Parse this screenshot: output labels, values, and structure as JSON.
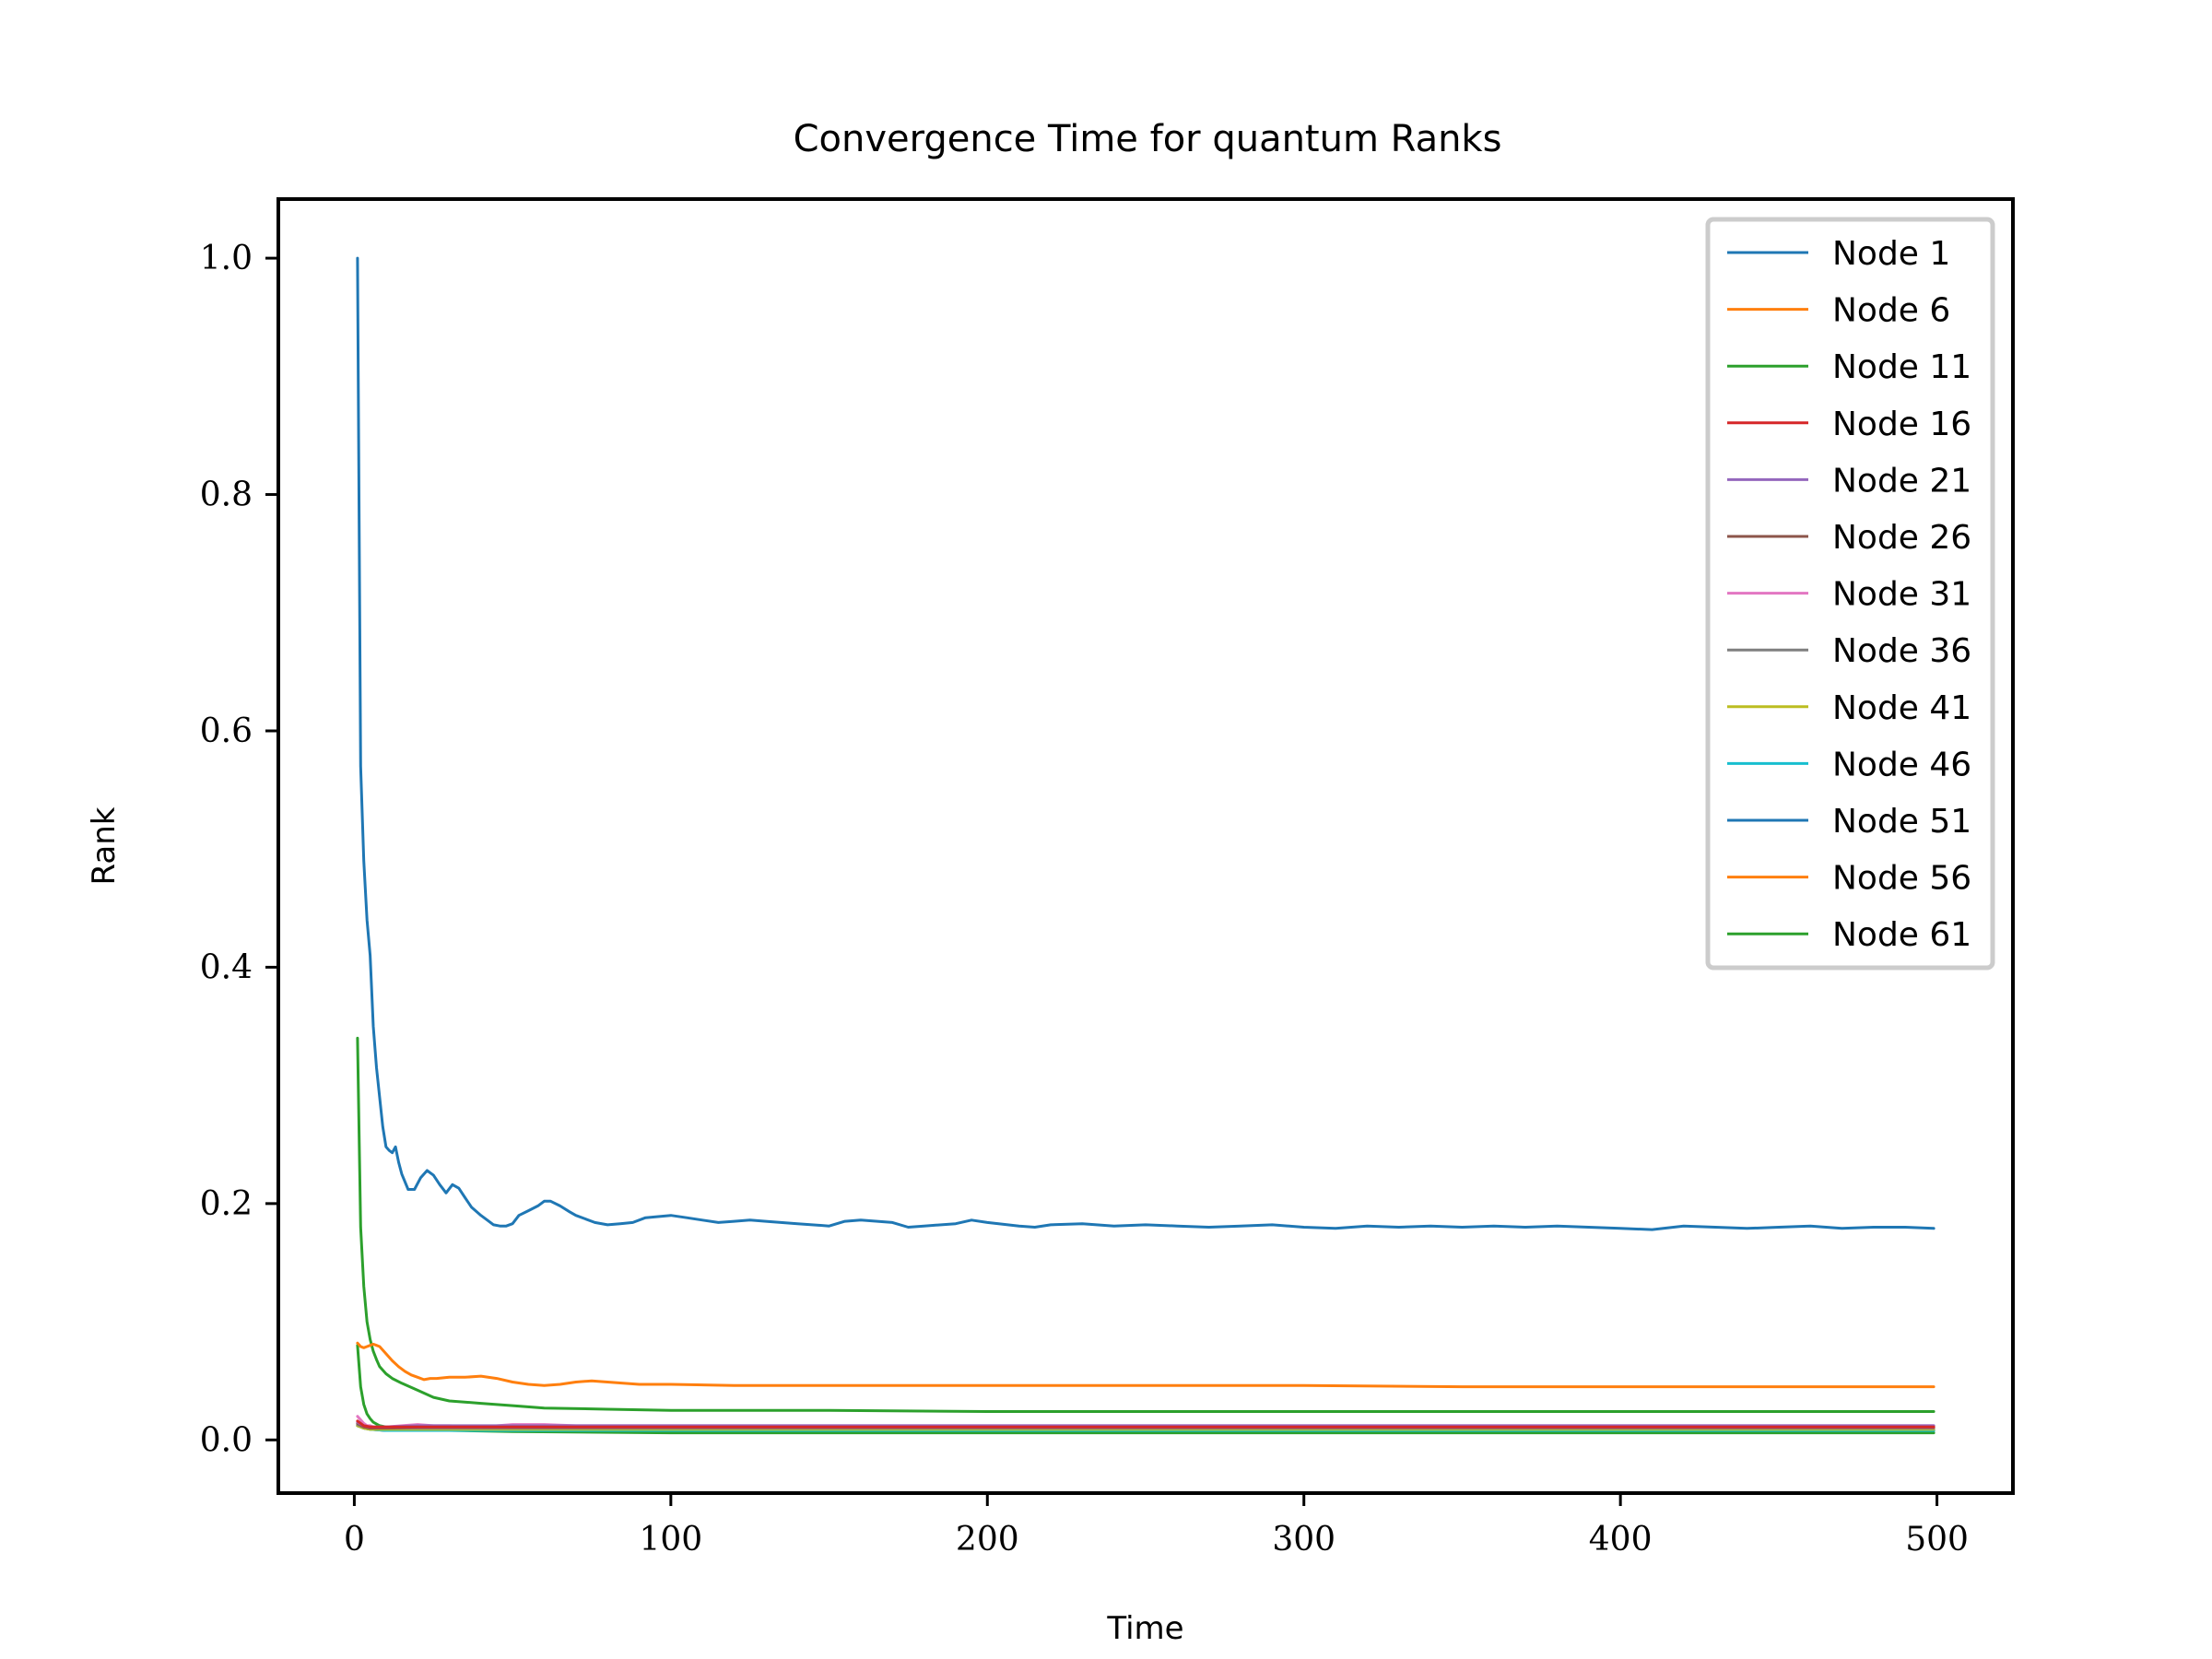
{
  "chart_data": {
    "type": "line",
    "title": "Convergence Time for quantum Ranks",
    "xlabel": "Time",
    "ylabel": "Rank",
    "xlim": [
      -24,
      524
    ],
    "ylim": [
      -0.045,
      1.05
    ],
    "xticks": [
      0,
      100,
      200,
      300,
      400,
      500
    ],
    "xtick_labels": [
      "0",
      "100",
      "200",
      "300",
      "400",
      "500"
    ],
    "yticks": [
      0.0,
      0.2,
      0.4,
      0.6,
      0.8,
      1.0
    ],
    "ytick_labels": [
      "0.0",
      "0.2",
      "0.4",
      "0.6",
      "0.8",
      "1.0"
    ],
    "grid": false,
    "legend_position": "top-right",
    "series": [
      {
        "name": "Node 1",
        "color": "#1f77b4",
        "x": [
          1,
          2,
          3,
          4,
          5,
          6,
          7,
          8,
          9,
          10,
          11,
          12,
          13,
          14,
          15,
          17,
          19,
          21,
          23,
          25,
          27,
          29,
          31,
          33,
          35,
          37,
          40,
          42,
          44,
          46,
          48,
          50,
          52,
          55,
          58,
          60,
          62,
          65,
          68,
          70,
          73,
          76,
          80,
          84,
          88,
          92,
          96,
          100,
          105,
          110,
          115,
          120,
          125,
          130,
          140,
          150,
          155,
          160,
          170,
          175,
          180,
          190,
          195,
          200,
          210,
          215,
          220,
          230,
          240,
          250,
          260,
          270,
          280,
          290,
          300,
          310,
          320,
          330,
          340,
          350,
          360,
          370,
          380,
          390,
          400,
          410,
          420,
          430,
          440,
          450,
          460,
          470,
          480,
          490,
          499
        ],
        "y": [
          1.0,
          0.57,
          0.49,
          0.44,
          0.41,
          0.35,
          0.315,
          0.29,
          0.265,
          0.248,
          0.245,
          0.243,
          0.248,
          0.235,
          0.225,
          0.212,
          0.212,
          0.222,
          0.228,
          0.224,
          0.216,
          0.209,
          0.216,
          0.213,
          0.205,
          0.197,
          0.19,
          0.186,
          0.182,
          0.181,
          0.181,
          0.183,
          0.19,
          0.194,
          0.198,
          0.202,
          0.202,
          0.198,
          0.193,
          0.19,
          0.187,
          0.184,
          0.182,
          0.183,
          0.184,
          0.188,
          0.189,
          0.19,
          0.188,
          0.186,
          0.184,
          0.185,
          0.186,
          0.185,
          0.183,
          0.181,
          0.185,
          0.186,
          0.184,
          0.18,
          0.181,
          0.183,
          0.186,
          0.184,
          0.181,
          0.18,
          0.182,
          0.183,
          0.181,
          0.182,
          0.181,
          0.18,
          0.181,
          0.182,
          0.18,
          0.179,
          0.181,
          0.18,
          0.181,
          0.18,
          0.181,
          0.18,
          0.181,
          0.18,
          0.179,
          0.178,
          0.181,
          0.18,
          0.179,
          0.18,
          0.181,
          0.179,
          0.18,
          0.18,
          0.179
        ]
      },
      {
        "name": "Node 6",
        "color": "#ff7f0e",
        "x": [
          1,
          2,
          3,
          4,
          5,
          6,
          7,
          8,
          10,
          12,
          14,
          16,
          18,
          20,
          22,
          24,
          26,
          30,
          35,
          40,
          45,
          50,
          55,
          60,
          65,
          70,
          75,
          80,
          85,
          90,
          100,
          120,
          140,
          160,
          180,
          200,
          250,
          300,
          350,
          400,
          450,
          499
        ],
        "y": [
          0.082,
          0.079,
          0.078,
          0.079,
          0.08,
          0.081,
          0.08,
          0.079,
          0.073,
          0.067,
          0.062,
          0.058,
          0.055,
          0.053,
          0.051,
          0.052,
          0.052,
          0.053,
          0.053,
          0.054,
          0.052,
          0.049,
          0.047,
          0.046,
          0.047,
          0.049,
          0.05,
          0.049,
          0.048,
          0.047,
          0.047,
          0.046,
          0.046,
          0.046,
          0.046,
          0.046,
          0.046,
          0.046,
          0.045,
          0.045,
          0.045,
          0.045
        ]
      },
      {
        "name": "Node 11",
        "color": "#2ca02c",
        "x": [
          1,
          2,
          3,
          4,
          5,
          6,
          7,
          8,
          10,
          12,
          15,
          20,
          25,
          30,
          40,
          50,
          60,
          80,
          100,
          150,
          200,
          300,
          400,
          499
        ],
        "y": [
          0.34,
          0.18,
          0.13,
          0.1,
          0.085,
          0.075,
          0.068,
          0.062,
          0.056,
          0.052,
          0.048,
          0.042,
          0.036,
          0.033,
          0.031,
          0.029,
          0.027,
          0.026,
          0.025,
          0.025,
          0.024,
          0.024,
          0.024,
          0.024
        ]
      },
      {
        "name": "Node 16",
        "color": "#d62728",
        "x": [
          1,
          3,
          5,
          10,
          20,
          50,
          100,
          200,
          300,
          400,
          499
        ],
        "y": [
          0.016,
          0.012,
          0.011,
          0.011,
          0.011,
          0.011,
          0.011,
          0.011,
          0.011,
          0.011,
          0.011
        ]
      },
      {
        "name": "Node 21",
        "color": "#9467bd",
        "x": [
          1,
          3,
          5,
          10,
          20,
          50,
          100,
          200,
          300,
          400,
          499
        ],
        "y": [
          0.015,
          0.012,
          0.011,
          0.011,
          0.012,
          0.012,
          0.012,
          0.012,
          0.012,
          0.012,
          0.012
        ]
      },
      {
        "name": "Node 26",
        "color": "#8c564b",
        "x": [
          1,
          3,
          5,
          10,
          20,
          50,
          100,
          200,
          300,
          400,
          499
        ],
        "y": [
          0.014,
          0.011,
          0.01,
          0.01,
          0.011,
          0.011,
          0.011,
          0.011,
          0.011,
          0.011,
          0.011
        ]
      },
      {
        "name": "Node 31",
        "color": "#e377c2",
        "x": [
          1,
          2,
          3,
          4,
          5,
          6,
          8,
          10,
          15,
          20,
          25,
          30,
          40,
          50,
          60,
          70,
          80,
          100,
          150,
          200,
          300,
          400,
          499
        ],
        "y": [
          0.02,
          0.017,
          0.014,
          0.012,
          0.012,
          0.011,
          0.011,
          0.011,
          0.012,
          0.013,
          0.012,
          0.012,
          0.011,
          0.013,
          0.013,
          0.012,
          0.012,
          0.012,
          0.012,
          0.012,
          0.012,
          0.012,
          0.012
        ]
      },
      {
        "name": "Node 36",
        "color": "#7f7f7f",
        "x": [
          1,
          3,
          5,
          10,
          20,
          50,
          100,
          200,
          300,
          400,
          499
        ],
        "y": [
          0.013,
          0.011,
          0.01,
          0.01,
          0.01,
          0.01,
          0.01,
          0.01,
          0.01,
          0.01,
          0.01
        ]
      },
      {
        "name": "Node 41",
        "color": "#bcbd22",
        "x": [
          1,
          3,
          5,
          10,
          20,
          50,
          100,
          200,
          300,
          400,
          499
        ],
        "y": [
          0.012,
          0.01,
          0.009,
          0.009,
          0.009,
          0.009,
          0.009,
          0.009,
          0.009,
          0.009,
          0.009
        ]
      },
      {
        "name": "Node 46",
        "color": "#17becf",
        "x": [
          1,
          3,
          5,
          10,
          20,
          50,
          100,
          200,
          300,
          400,
          499
        ],
        "y": [
          0.012,
          0.01,
          0.009,
          0.008,
          0.008,
          0.008,
          0.008,
          0.008,
          0.008,
          0.008,
          0.008
        ]
      },
      {
        "name": "Node 51",
        "color": "#1f77b4",
        "x": [
          1,
          3,
          5,
          10,
          20,
          50,
          100,
          200,
          300,
          400,
          499
        ],
        "y": [
          0.012,
          0.01,
          0.009,
          0.008,
          0.008,
          0.008,
          0.008,
          0.008,
          0.008,
          0.008,
          0.008
        ]
      },
      {
        "name": "Node 56",
        "color": "#ff7f0e",
        "x": [
          1,
          3,
          5,
          10,
          20,
          50,
          100,
          200,
          300,
          400,
          499
        ],
        "y": [
          0.012,
          0.01,
          0.009,
          0.008,
          0.008,
          0.008,
          0.008,
          0.008,
          0.008,
          0.008,
          0.008
        ]
      },
      {
        "name": "Node 61",
        "color": "#2ca02c",
        "x": [
          1,
          2,
          3,
          4,
          5,
          6,
          8,
          10,
          15,
          20,
          30,
          50,
          100,
          200,
          300,
          400,
          499
        ],
        "y": [
          0.08,
          0.045,
          0.03,
          0.022,
          0.018,
          0.015,
          0.012,
          0.011,
          0.01,
          0.009,
          0.008,
          0.007,
          0.006,
          0.006,
          0.006,
          0.006,
          0.006
        ]
      }
    ]
  }
}
